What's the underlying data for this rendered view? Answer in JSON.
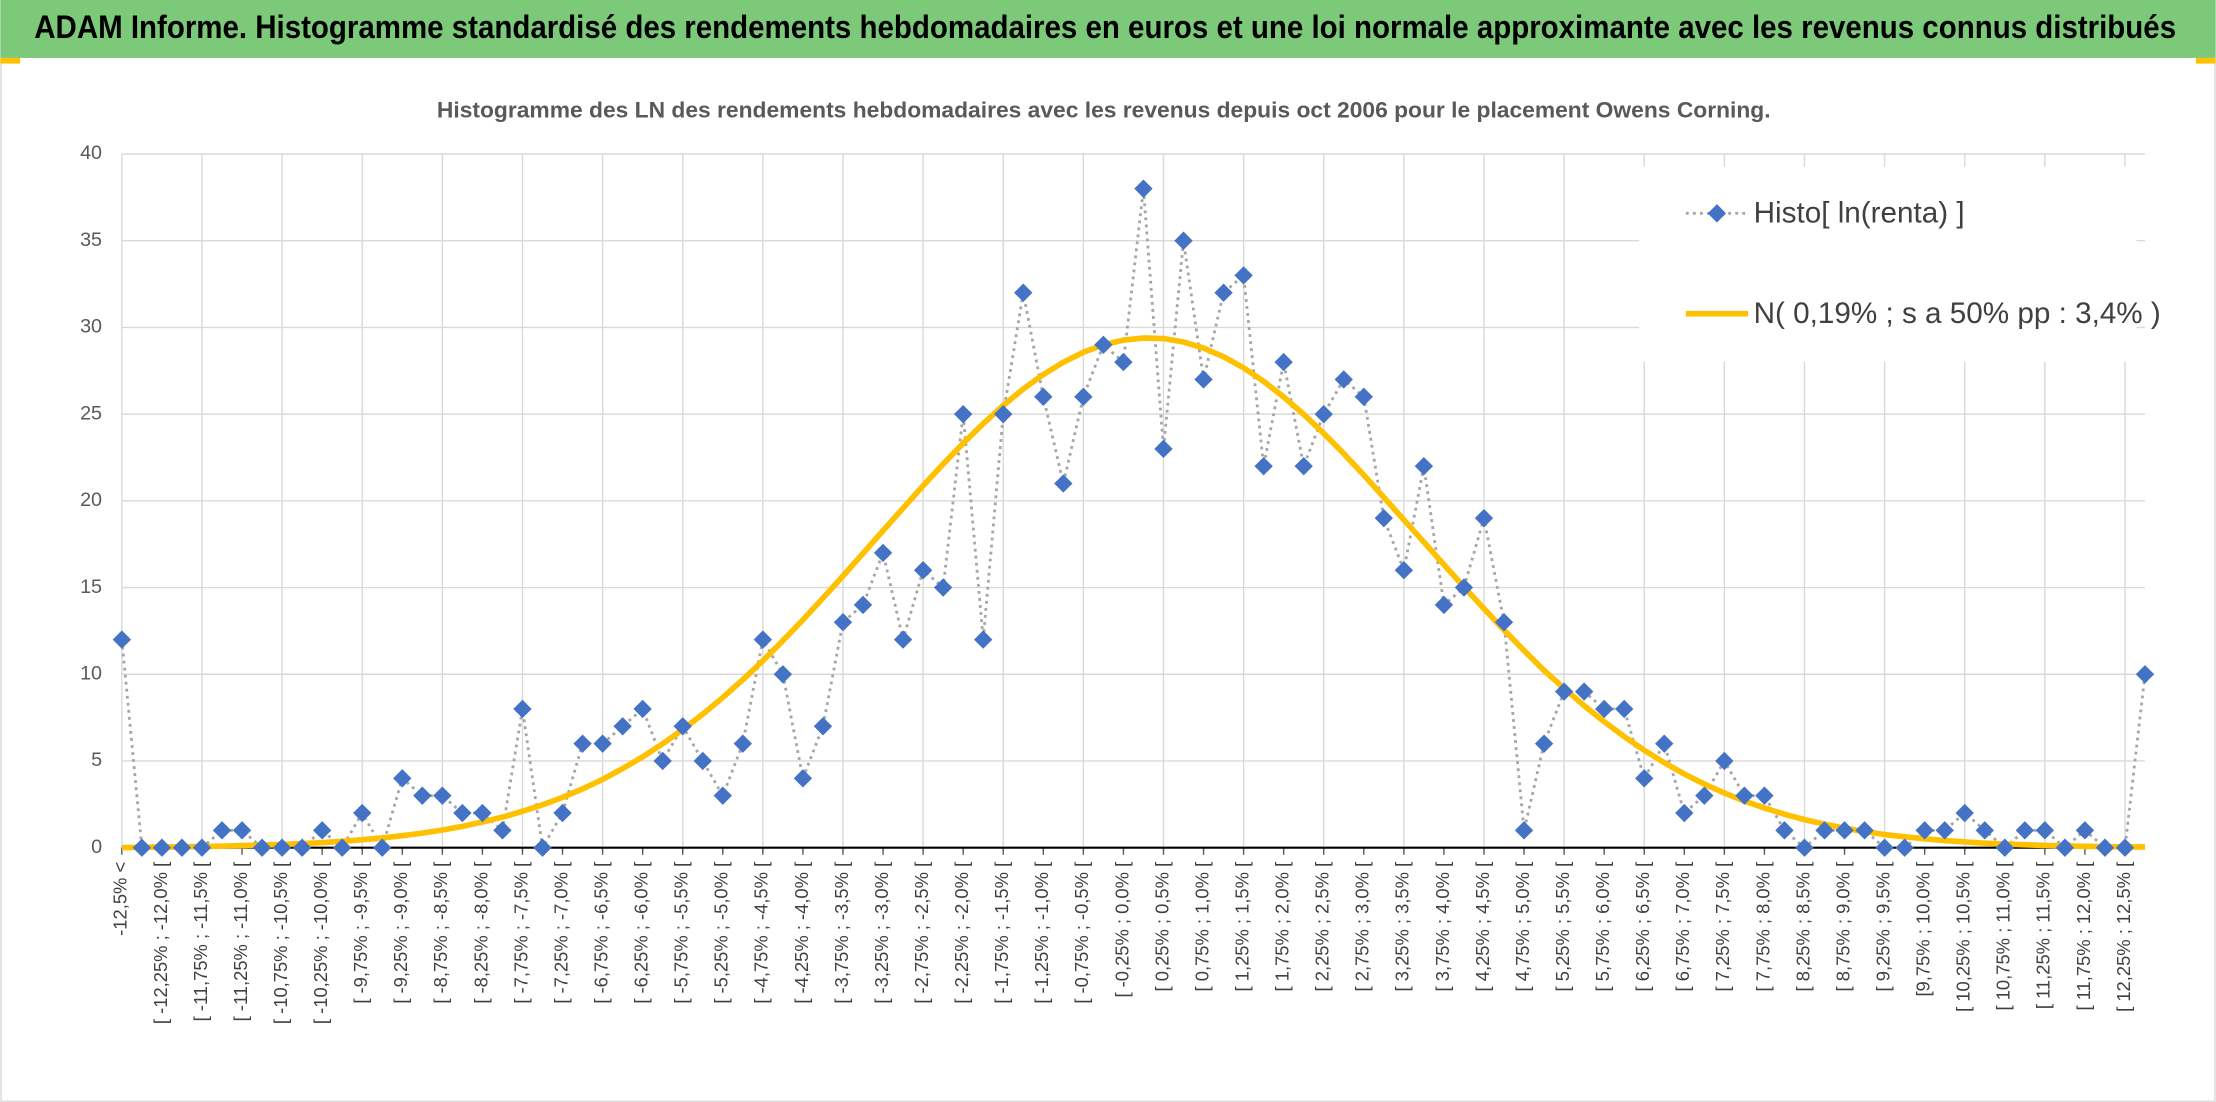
{
  "header": {
    "title": "ADAM Informe. Histogramme standardisé des rendements hebdomadaires en euros et une loi normale approximante avec les revenus connus distribués"
  },
  "chart_data": {
    "type": "line",
    "title": "Histogramme des LN des rendements hebdomadaires avec les revenus depuis oct 2006 pour le placement Owens Corning.",
    "categories": [
      "-12,5% <",
      null,
      "[ -12,25% ; -12,0% [",
      null,
      "[ -11,75% ; -11,5% [",
      null,
      "[ -11,25% ; -11,0% [",
      null,
      "[ -10,75% ; -10,5% [",
      null,
      "[ -10,25% ; -10,0% [",
      null,
      "[ -9,75% ; -9,5% [",
      null,
      "[ -9,25% ; -9,0% [",
      null,
      "[ -8,75% ; -8,5% [",
      null,
      "[ -8,25% ; -8,0% [",
      null,
      "[ -7,75% ; -7,5% [",
      null,
      "[ -7,25% ; -7,0% [",
      null,
      "[ -6,75% ; -6,5% [",
      null,
      "[ -6,25% ; -6,0% [",
      null,
      "[ -5,75% ; -5,5% [",
      null,
      "[ -5,25% ; -5,0% [",
      null,
      "[ -4,75% ; -4,5% [",
      null,
      "[ -4,25% ; -4,0% [",
      null,
      "[ -3,75% ; -3,5% [",
      null,
      "[ -3,25% ; -3,0% [",
      null,
      "[ -2,75% ; -2,5% [",
      null,
      "[ -2,25% ; -2,0% [",
      null,
      "[ -1,75% ; -1,5% [",
      null,
      "[ -1,25% ; -1,0% [",
      null,
      "[ -0,75% ; -0,5% [",
      null,
      "[ -0,25% ; 0,0% [",
      null,
      "[ 0,25% ; 0,5% [",
      null,
      "[ 0,75% ; 1,0% [",
      null,
      "[ 1,25% ; 1,5% [",
      null,
      "[ 1,75% ; 2,0% [",
      null,
      "[ 2,25% ; 2,5% [",
      null,
      "[ 2,75% ; 3,0% [",
      null,
      "[ 3,25% ; 3,5% [",
      null,
      "[ 3,75% ; 4,0% [",
      null,
      "[ 4,25% ; 4,5% [",
      null,
      "[ 4,75% ; 5,0% [",
      null,
      "[ 5,25% ; 5,5% [",
      null,
      "[ 5,75% ; 6,0% [",
      null,
      "[ 6,25% ; 6,5% [",
      null,
      "[ 6,75% ; 7,0% [",
      null,
      "[ 7,25% ; 7,5% [",
      null,
      "[ 7,75% ; 8,0% [",
      null,
      "[ 8,25% ; 8,5% [",
      null,
      "[ 8,75% ; 9,0% [",
      null,
      "[ 9,25% ; 9,5% [",
      null,
      "[9,75% ; 10,0% [",
      null,
      "[ 10,25% ; 10,5% [",
      null,
      "[ 10,75% ; 11,0% [",
      null,
      "[ 11,25% ; 11,5% [",
      null,
      "[ 11,75% ; 12,0% [",
      null,
      "[ 12,25% ; 12,5% [",
      null
    ],
    "series": [
      {
        "name": "Histo[ ln(renta) ]",
        "color": "#4472c4",
        "line_color": "#a6a6a6",
        "line_style": "dotted",
        "marker": "diamond",
        "values": [
          12,
          0,
          0,
          0,
          0,
          1,
          1,
          0,
          0,
          0,
          1,
          0,
          2,
          0,
          4,
          3,
          3,
          2,
          2,
          1,
          8,
          0,
          2,
          6,
          6,
          7,
          8,
          5,
          7,
          5,
          3,
          6,
          12,
          10,
          4,
          7,
          13,
          14,
          17,
          12,
          16,
          15,
          25,
          12,
          25,
          32,
          26,
          21,
          26,
          29,
          28,
          38,
          23,
          35,
          27,
          32,
          33,
          22,
          28,
          22,
          25,
          27,
          26,
          19,
          16,
          22,
          14,
          15,
          19,
          13,
          1,
          6,
          9,
          9,
          8,
          8,
          4,
          6,
          2,
          3,
          5,
          3,
          3,
          1,
          0,
          1,
          1,
          1,
          0,
          0,
          1,
          1,
          2,
          1,
          0,
          1,
          1,
          0,
          1,
          0,
          0,
          10
        ]
      },
      {
        "name": "N( 0,19% ; s a 50% pp : 3,4% )",
        "color": "#ffc000",
        "line_color": "#ffc000",
        "line_style": "solid",
        "marker": "none",
        "values": [
          0,
          0.03,
          0.04,
          0.05,
          0.07,
          0.09,
          0.12,
          0.15,
          0.19,
          0.24,
          0.29,
          0.37,
          0.46,
          0.56,
          0.69,
          0.84,
          1.02,
          1.23,
          1.48,
          1.76,
          2.1,
          2.47,
          2.9,
          3.39,
          3.94,
          4.56,
          5.24,
          5.99,
          6.81,
          7.7,
          8.66,
          9.69,
          10.78,
          11.94,
          13.14,
          14.39,
          15.67,
          16.97,
          18.28,
          19.58,
          20.87,
          22.12,
          23.32,
          24.45,
          25.5,
          26.45,
          27.28,
          27.99,
          28.57,
          29.0,
          29.27,
          29.39,
          29.36,
          29.16,
          28.81,
          28.31,
          27.67,
          26.89,
          25.99,
          24.99,
          23.89,
          22.72,
          21.49,
          20.2,
          18.91,
          17.62,
          16.32,
          15.04,
          13.78,
          12.55,
          11.37,
          10.22,
          9.19,
          8.19,
          7.27,
          6.41,
          5.62,
          4.9,
          4.25,
          3.67,
          3.15,
          2.69,
          2.29,
          1.93,
          1.62,
          1.36,
          1.13,
          0.93,
          0.76,
          0.63,
          0.51,
          0.41,
          0.33,
          0.26,
          0.21,
          0.17,
          0.13,
          0.1,
          0.08,
          0.06,
          0.05,
          0.04
        ]
      }
    ],
    "ylim": [
      0,
      40
    ],
    "yticks": [
      0,
      5,
      10,
      15,
      20,
      25,
      30,
      35,
      40
    ],
    "grid": true,
    "legend": "top-right"
  }
}
